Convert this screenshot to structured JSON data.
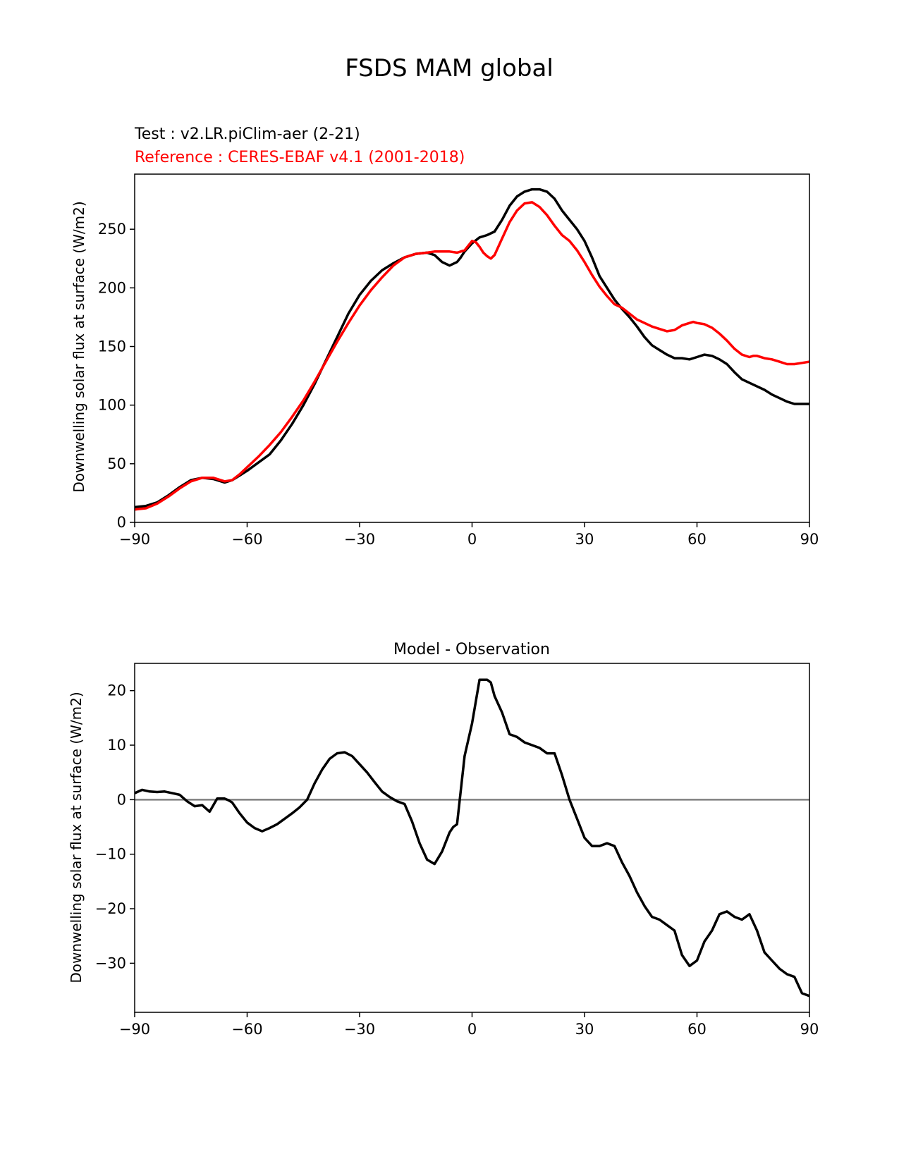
{
  "figure": {
    "suptitle": "FSDS MAM global"
  },
  "chart_data": [
    {
      "type": "line",
      "test_label": "Test : v2.LR.piClim-aer (2-21)",
      "reference_label": "Reference : CERES-EBAF v4.1 (2001-2018)",
      "title": "",
      "xlabel": "",
      "ylabel": "Downwelling solar flux at surface (W/m2)",
      "xlim": [
        -90,
        90
      ],
      "ylim": [
        0,
        297
      ],
      "xticks": [
        -90,
        -60,
        -30,
        0,
        30,
        60,
        90
      ],
      "xtick_labels": [
        "−90",
        "−60",
        "−30",
        "0",
        "30",
        "60",
        "90"
      ],
      "yticks": [
        0,
        50,
        100,
        150,
        200,
        250
      ],
      "ytick_labels": [
        "0",
        "50",
        "100",
        "150",
        "200",
        "250"
      ],
      "grid": false,
      "series": [
        {
          "color": "#000000",
          "x": [
            -90,
            -87,
            -84,
            -81,
            -78,
            -75,
            -72,
            -69,
            -66,
            -64,
            -62,
            -60,
            -57,
            -54,
            -51,
            -48,
            -45,
            -42,
            -39,
            -36,
            -33,
            -30,
            -27,
            -24,
            -21,
            -18,
            -15,
            -12,
            -10,
            -8,
            -6,
            -4,
            -3,
            -2,
            0,
            2,
            4,
            6,
            8,
            10,
            12,
            14,
            16,
            18,
            20,
            22,
            24,
            26,
            28,
            30,
            32,
            34,
            36,
            38,
            40,
            42,
            44,
            46,
            48,
            50,
            52,
            54,
            56,
            58,
            60,
            62,
            64,
            66,
            68,
            70,
            72,
            74,
            76,
            78,
            80,
            82,
            84,
            86,
            88,
            90
          ],
          "y": [
            13,
            14,
            17,
            23,
            30,
            36,
            38,
            37,
            34,
            36,
            40,
            44,
            51,
            58,
            70,
            84,
            100,
            118,
            138,
            158,
            178,
            194,
            206,
            215,
            221,
            226,
            229,
            230,
            228,
            222,
            219,
            222,
            226,
            231,
            238,
            243,
            245,
            248,
            258,
            270,
            278,
            282,
            284,
            284,
            282,
            276,
            266,
            258,
            250,
            240,
            226,
            210,
            200,
            190,
            182,
            175,
            167,
            158,
            151,
            147,
            143,
            140,
            140,
            139,
            141,
            143,
            142,
            139,
            135,
            128,
            122,
            119,
            116,
            113,
            109,
            106,
            103,
            101,
            101,
            101
          ]
        },
        {
          "color": "#ff0000",
          "x": [
            -90,
            -87,
            -84,
            -81,
            -78,
            -75,
            -72,
            -69,
            -66,
            -64,
            -62,
            -60,
            -57,
            -54,
            -51,
            -48,
            -45,
            -42,
            -39,
            -36,
            -33,
            -30,
            -27,
            -24,
            -21,
            -18,
            -15,
            -12,
            -10,
            -8,
            -6,
            -4,
            -2,
            0,
            1,
            2,
            3,
            4,
            5,
            6,
            8,
            10,
            12,
            14,
            16,
            18,
            20,
            22,
            24,
            26,
            28,
            30,
            32,
            34,
            36,
            38,
            40,
            42,
            44,
            46,
            48,
            50,
            52,
            54,
            56,
            58,
            59,
            60,
            62,
            64,
            66,
            68,
            70,
            72,
            74,
            75,
            76,
            78,
            80,
            82,
            84,
            86,
            88,
            90
          ],
          "y": [
            11,
            12,
            16,
            22,
            29,
            35,
            38,
            38,
            35,
            36,
            41,
            47,
            56,
            66,
            77,
            90,
            104,
            120,
            137,
            154,
            170,
            185,
            198,
            209,
            219,
            226,
            229,
            230,
            231,
            231,
            231,
            230,
            232,
            240,
            239,
            235,
            230,
            227,
            225,
            228,
            242,
            256,
            266,
            272,
            273,
            269,
            262,
            253,
            245,
            240,
            232,
            222,
            211,
            201,
            193,
            186,
            183,
            178,
            173,
            170,
            167,
            165,
            163,
            164,
            168,
            170,
            171,
            170,
            169,
            166,
            161,
            155,
            148,
            143,
            141,
            142,
            142,
            140,
            139,
            137,
            135,
            135,
            136,
            137
          ]
        }
      ]
    },
    {
      "type": "line",
      "title": "Model - Observation",
      "xlabel": "",
      "ylabel": "Downwelling solar flux at surface (W/m2)",
      "xlim": [
        -90,
        90
      ],
      "ylim": [
        -39,
        25
      ],
      "xticks": [
        -90,
        -60,
        -30,
        0,
        30,
        60,
        90
      ],
      "xtick_labels": [
        "−90",
        "−60",
        "−30",
        "0",
        "30",
        "60",
        "90"
      ],
      "yticks": [
        -30,
        -20,
        -10,
        0,
        10,
        20
      ],
      "ytick_labels": [
        "−30",
        "−20",
        "−10",
        "0",
        "10",
        "20"
      ],
      "grid": false,
      "zero_line_color": "#808080",
      "series": [
        {
          "color": "#000000",
          "x": [
            -90,
            -88,
            -86,
            -84,
            -82,
            -80,
            -78,
            -76,
            -74,
            -72,
            -70,
            -68,
            -66,
            -65,
            -64,
            -62,
            -60,
            -58,
            -56,
            -54,
            -52,
            -50,
            -48,
            -46,
            -44,
            -42,
            -40,
            -38,
            -36,
            -34,
            -32,
            -30,
            -28,
            -26,
            -24,
            -22,
            -20,
            -18,
            -16,
            -14,
            -12,
            -10,
            -8,
            -6,
            -5,
            -4,
            -2,
            0,
            2,
            4,
            5,
            6,
            8,
            10,
            12,
            14,
            16,
            18,
            20,
            22,
            24,
            26,
            28,
            30,
            32,
            34,
            36,
            38,
            40,
            42,
            44,
            46,
            48,
            50,
            52,
            54,
            56,
            58,
            60,
            62,
            64,
            66,
            68,
            70,
            72,
            74,
            76,
            78,
            80,
            82,
            84,
            86,
            88,
            90
          ],
          "y": [
            1.2,
            1.8,
            1.5,
            1.4,
            1.5,
            1.2,
            0.9,
            -0.3,
            -1.2,
            -1.0,
            -2.2,
            0.2,
            0.2,
            -0.1,
            -0.5,
            -2.5,
            -4.2,
            -5.2,
            -5.8,
            -5.2,
            -4.5,
            -3.5,
            -2.5,
            -1.4,
            0,
            3.0,
            5.5,
            7.5,
            8.5,
            8.7,
            8.0,
            6.5,
            5.0,
            3.2,
            1.5,
            0.5,
            -0.3,
            -0.8,
            -4.0,
            -8.0,
            -11.0,
            -11.8,
            -9.5,
            -6.0,
            -5.0,
            -4.5,
            8.0,
            14.0,
            22.0,
            22.0,
            21.5,
            19.0,
            16.0,
            12.0,
            11.5,
            10.5,
            10.0,
            9.5,
            8.5,
            8.5,
            4.5,
            0,
            -3.5,
            -7.0,
            -8.5,
            -8.5,
            -8.0,
            -8.5,
            -11.5,
            -14.0,
            -17.0,
            -19.5,
            -21.5,
            -22.0,
            -23.0,
            -24.0,
            -28.5,
            -30.5,
            -29.5,
            -26.0,
            -24.0,
            -21.0,
            -20.5,
            -21.5,
            -22.0,
            -21.0,
            -24.0,
            -28.0,
            -29.5,
            -31.0,
            -32.0,
            -32.5,
            -35.5,
            -36.0
          ]
        }
      ]
    }
  ]
}
